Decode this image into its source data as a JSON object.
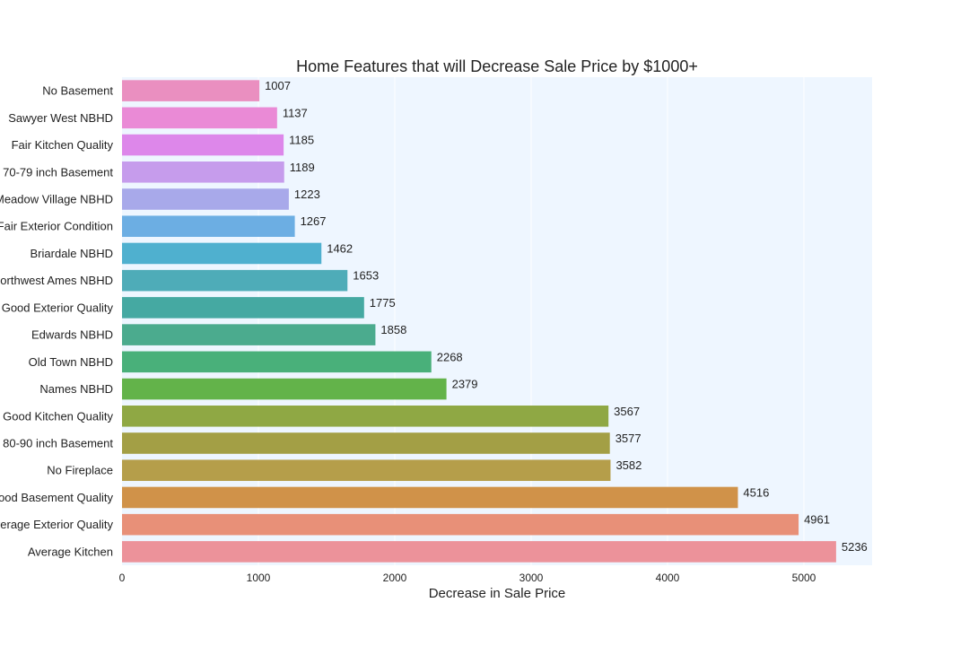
{
  "chart_data": {
    "type": "bar",
    "orientation": "horizontal",
    "title": "Home Features that will Decrease Sale Price by $1000+",
    "xlabel": "Decrease in Sale Price",
    "ylabel": "",
    "xlim": [
      0,
      5500
    ],
    "xticks": [
      0,
      1000,
      2000,
      3000,
      4000,
      5000
    ],
    "grid": true,
    "categories": [
      "No Basement",
      "Sawyer West NBHD",
      "Fair Kitchen Quality",
      "70-79 inch Basement",
      "Meadow Village NBHD",
      "Fair Exterior Condition",
      "Briardale NBHD",
      "Northwest Ames NBHD",
      "Good Exterior Quality",
      "Edwards NBHD",
      "Old Town NBHD",
      "Names NBHD",
      "Good Kitchen Quality",
      "80-90 inch Basement",
      "No Fireplace",
      "Good Basement Quality",
      "Average Exterior Quality",
      "Average Kitchen"
    ],
    "values": [
      1007,
      1137,
      1185,
      1189,
      1223,
      1267,
      1462,
      1653,
      1775,
      1858,
      2268,
      2379,
      3567,
      3577,
      3582,
      4516,
      4961,
      5236
    ],
    "colors": [
      "#ea8fc0",
      "#ea8ad6",
      "#dd87ea",
      "#c69cec",
      "#a8a9ea",
      "#6caee3",
      "#4fb0cf",
      "#4eacb8",
      "#45a9a2",
      "#4bab8e",
      "#49b07a",
      "#63b34a",
      "#8fa844",
      "#a39f45",
      "#b59e4a",
      "#d09249",
      "#e89078",
      "#ec929a"
    ]
  }
}
